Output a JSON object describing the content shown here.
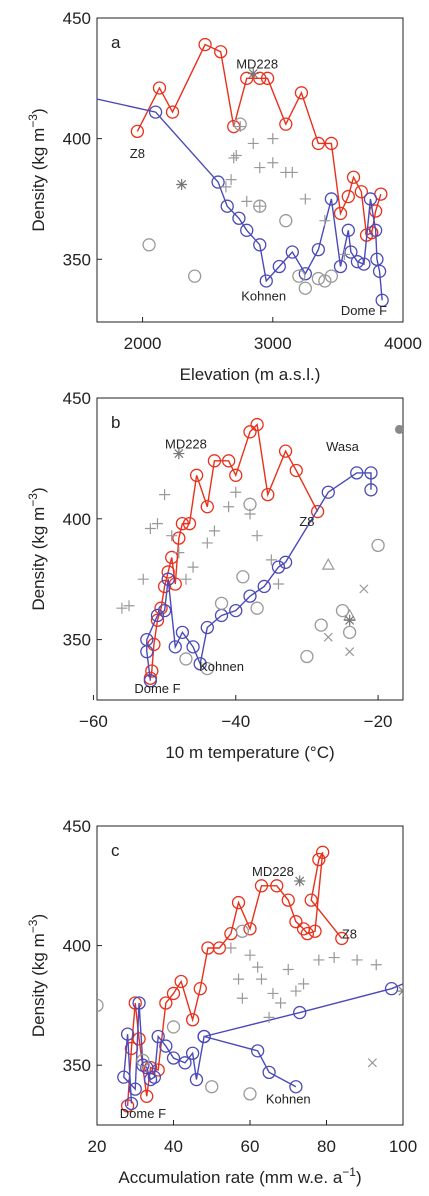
{
  "chart_data": [
    {
      "type": "line",
      "panel": "a",
      "xlabel": "Elevation (m a.s.l.)",
      "ylabel": "Density (kg m",
      "ylabel_exp": "−3",
      "ylabel_end": ")",
      "xlim": [
        1650,
        4000
      ],
      "ylim": [
        324,
        450
      ],
      "xticks": [
        2000,
        3000,
        4000
      ],
      "yticks": [
        350,
        400,
        450
      ],
      "annotations": [
        "MD228",
        "Z8",
        "Kohnen",
        "Dome F"
      ],
      "series": [
        {
          "color": "#e8301c",
          "marker": "circle",
          "line": true,
          "x": [
            1960,
            2130,
            2230,
            2480,
            2600,
            2700,
            2800,
            2900,
            2960,
            3100,
            3220,
            3350,
            3450,
            3520,
            3580,
            3620,
            3680,
            3720,
            3760,
            3790,
            3830
          ],
          "values": [
            403,
            421,
            411,
            439,
            436,
            405,
            425,
            425,
            425,
            406,
            419,
            398,
            398,
            369,
            376,
            384,
            378,
            360,
            361,
            370,
            377
          ]
        },
        {
          "color": "#4a4ab8",
          "marker": "circle",
          "line": true,
          "x": [
            1600,
            2100,
            2580,
            2650,
            2740,
            2800,
            2900,
            2950,
            3050,
            3150,
            3250,
            3350,
            3450,
            3520,
            3580,
            3600,
            3650,
            3700,
            3750,
            3790,
            3800,
            3820,
            3840
          ],
          "values": [
            417,
            411,
            382,
            372,
            367,
            362,
            356,
            341,
            347,
            353,
            344,
            354,
            375,
            347,
            362,
            353,
            349,
            348,
            375,
            362,
            350,
            345,
            333
          ]
        },
        {
          "color": "#999999",
          "marker": "plus",
          "line": false,
          "x": [
            2640,
            2680,
            2700,
            2720,
            2750,
            2800,
            2850,
            2900,
            2900,
            3000,
            3000,
            3100,
            3150,
            3250,
            3400,
            3550
          ],
          "values": [
            380,
            383,
            392,
            393,
            405,
            374,
            398,
            372,
            388,
            390,
            400,
            386,
            386,
            375,
            366,
            352
          ]
        },
        {
          "color": "#999999",
          "marker": "circle",
          "line": false,
          "x": [
            2050,
            2400,
            2750,
            2900,
            3100,
            3200,
            3250,
            3350,
            3400,
            3450
          ],
          "values": [
            356,
            343,
            406,
            372,
            366,
            343,
            338,
            342,
            341,
            343
          ]
        },
        {
          "color": "#777777",
          "marker": "asterisk",
          "line": false,
          "x": [
            2300,
            2850
          ],
          "values": [
            381,
            427
          ]
        }
      ]
    },
    {
      "type": "line",
      "panel": "b",
      "xlabel": "10 m temperature (°C)",
      "ylabel": "Density (kg m",
      "ylabel_exp": "−3",
      "ylabel_end": ")",
      "xlim": [
        -59.5,
        -16.5
      ],
      "ylim": [
        325,
        450
      ],
      "xticks": [
        {
          "value": -60,
          "label": "−60"
        },
        {
          "value": -40,
          "label": "−40"
        },
        {
          "value": -20,
          "label": "−20"
        }
      ],
      "yticks": [
        350,
        400,
        450
      ],
      "annotations": [
        "MD228",
        "Wasa",
        "Z8",
        "Kohnen",
        "Dome F"
      ],
      "series": [
        {
          "color": "#e8301c",
          "marker": "circle",
          "line": true,
          "x": [
            -52,
            -51.8,
            -51.5,
            -51,
            -50.5,
            -50,
            -49.5,
            -49,
            -48.5,
            -48,
            -47.5,
            -46.5,
            -45.5,
            -44,
            -43,
            -41,
            -40,
            -38,
            -37,
            -35.5,
            -33,
            -31.5,
            -28.5
          ],
          "values": [
            334,
            337,
            348,
            358,
            363,
            372,
            378,
            384,
            373,
            392,
            398,
            398,
            418,
            405,
            424,
            424,
            418,
            436,
            439,
            410,
            428,
            420,
            403
          ]
        },
        {
          "color": "#4a4ab8",
          "marker": "circle",
          "line": true,
          "x": [
            -52,
            -52.5,
            -52.5,
            -51,
            -50,
            -49.5,
            -48.5,
            -47.5,
            -46,
            -45,
            -44,
            -42,
            -40,
            -38,
            -36,
            -34,
            -33,
            -27,
            -23,
            -21,
            -21
          ],
          "values": [
            333,
            345,
            350,
            360,
            362,
            375,
            347,
            353,
            347,
            340,
            355,
            360,
            362,
            368,
            372,
            380,
            382,
            411,
            419,
            419,
            412
          ]
        },
        {
          "color": "#999999",
          "marker": "plus",
          "line": false,
          "x": [
            -56,
            -55,
            -53,
            -52,
            -51,
            -50,
            -49,
            -48,
            -47,
            -46,
            -44,
            -43,
            -41,
            -40,
            -38,
            -37,
            -35,
            -34
          ],
          "values": [
            363,
            364,
            375,
            396,
            398,
            410,
            393,
            386,
            375,
            380,
            390,
            395,
            405,
            411,
            402,
            393,
            383,
            373
          ]
        },
        {
          "color": "#999999",
          "marker": "circle",
          "line": false,
          "x": [
            -47,
            -44,
            -42,
            -39,
            -37,
            -38,
            -30,
            -28,
            -25,
            -24,
            -20
          ],
          "values": [
            342,
            338,
            365,
            376,
            363,
            406,
            343,
            356,
            362,
            353,
            389
          ]
        },
        {
          "color": "#999999",
          "marker": "triangle",
          "line": false,
          "x": [
            -27,
            -24
          ],
          "values": [
            381,
            360
          ]
        },
        {
          "color": "#999999",
          "marker": "x",
          "line": false,
          "x": [
            -27,
            -22,
            -24
          ],
          "values": [
            351,
            371,
            345
          ]
        },
        {
          "color": "#777777",
          "marker": "asterisk",
          "line": false,
          "x": [
            -48,
            -24
          ],
          "values": [
            427,
            358
          ]
        },
        {
          "color": "#888888",
          "marker": "dot",
          "line": false,
          "x": [
            -17
          ],
          "values": [
            437
          ]
        }
      ]
    },
    {
      "type": "line",
      "panel": "c",
      "xlabel": "Accumulation rate (mm w.e. a",
      "xlabel_exp": "−1",
      "xlabel_end": ")",
      "ylabel": "Density (kg m",
      "ylabel_exp": "−3",
      "ylabel_end": ")",
      "xlim": [
        20,
        100
      ],
      "ylim": [
        325,
        450
      ],
      "xticks": [
        20,
        40,
        60,
        80,
        100
      ],
      "yticks": [
        350,
        400,
        450
      ],
      "annotations": [
        "MD228",
        "Z8",
        "Kohnen",
        "Dome F"
      ],
      "series": [
        {
          "color": "#e8301c",
          "marker": "circle",
          "line": true,
          "x": [
            28,
            29,
            30,
            31,
            33,
            34,
            36,
            38,
            40,
            42,
            45,
            47,
            49,
            52,
            55,
            57,
            60,
            63,
            67,
            70,
            72,
            74,
            75,
            77,
            79,
            78,
            76,
            84
          ],
          "values": [
            333,
            357,
            376,
            361,
            337,
            349,
            348,
            376,
            380,
            385,
            369,
            382,
            399,
            399,
            405,
            418,
            407,
            425,
            425,
            419,
            410,
            407,
            405,
            406,
            439,
            436,
            419,
            403
          ]
        },
        {
          "color": "#4a4ab8",
          "marker": "circle",
          "line": true,
          "x": [
            29,
            28,
            27,
            30,
            31,
            32,
            33,
            34,
            35,
            36,
            38,
            40,
            43,
            45,
            46,
            48,
            62,
            65,
            72
          ],
          "values": [
            334,
            363,
            345,
            340,
            376,
            350,
            349,
            344,
            345,
            362,
            358,
            353,
            351,
            355,
            344,
            362,
            356,
            347,
            341
          ]
        },
        {
          "color": "#4a4ab8",
          "marker": "circle",
          "line": true,
          "x": [
            48,
            73,
            97,
            106
          ],
          "values": [
            362,
            372,
            382,
            388
          ]
        },
        {
          "color": "#999999",
          "marker": "plus",
          "line": false,
          "x": [
            55,
            57,
            60,
            62,
            63,
            66,
            68,
            70,
            72,
            74,
            78,
            82,
            88,
            93,
            65,
            58
          ],
          "values": [
            399,
            386,
            396,
            391,
            386,
            380,
            376,
            390,
            381,
            384,
            394,
            395,
            394,
            392,
            370,
            378
          ]
        },
        {
          "color": "#999999",
          "marker": "circle",
          "line": false,
          "x": [
            20,
            40,
            50,
            60,
            58,
            32
          ],
          "values": [
            375,
            366,
            341,
            338,
            406,
            352
          ]
        },
        {
          "color": "#777777",
          "marker": "asterisk",
          "line": false,
          "x": [
            73,
            100
          ],
          "values": [
            427,
            381
          ]
        },
        {
          "color": "#999999",
          "marker": "x",
          "line": false,
          "x": [
            92
          ],
          "values": [
            351
          ]
        }
      ]
    }
  ]
}
